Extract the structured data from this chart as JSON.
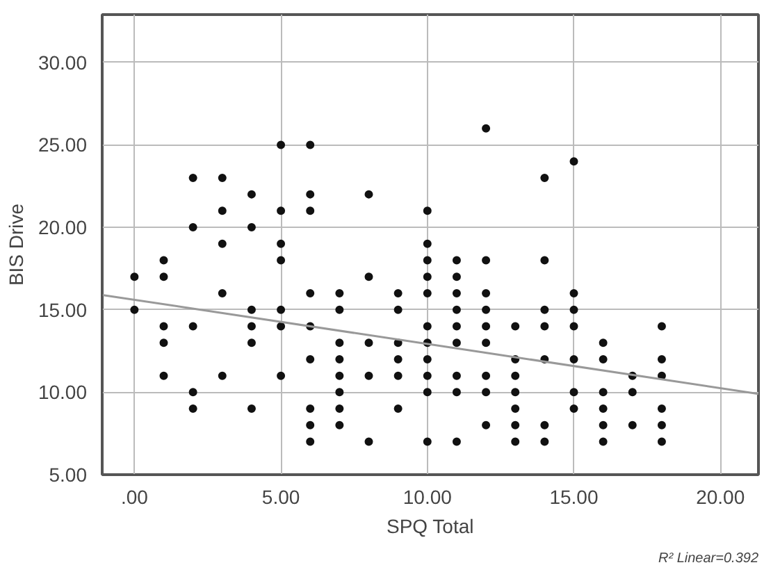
{
  "chart_data": {
    "type": "scatter",
    "xlabel": "SPQ Total",
    "ylabel": "BIS Drive",
    "annotations": [
      "R² Linear=0.392"
    ],
    "xlim": [
      -1.1,
      21.3
    ],
    "ylim": [
      5,
      32.9
    ],
    "xticks": [
      {
        "value": 0,
        "label": ".00"
      },
      {
        "value": 5,
        "label": "5.00"
      },
      {
        "value": 10,
        "label": "10.00"
      },
      {
        "value": 15,
        "label": "15.00"
      },
      {
        "value": 20,
        "label": "20.00"
      }
    ],
    "yticks": [
      {
        "value": 5,
        "label": "5.00"
      },
      {
        "value": 10,
        "label": "10.00"
      },
      {
        "value": 15,
        "label": "15.00"
      },
      {
        "value": 20,
        "label": "20.00"
      },
      {
        "value": 25,
        "label": "25.00"
      },
      {
        "value": 30,
        "label": "30.00"
      }
    ],
    "grid": true,
    "series": [
      {
        "color": "#111111",
        "marker": "circle",
        "x": [
          0,
          0,
          1,
          1,
          1,
          1,
          1,
          2,
          2,
          2,
          2,
          2,
          3,
          3,
          3,
          3,
          3,
          4,
          4,
          4,
          4,
          4,
          4,
          5,
          5,
          5,
          5,
          5,
          5,
          5,
          6,
          6,
          6,
          6,
          6,
          6,
          6,
          6,
          6,
          7,
          7,
          7,
          7,
          7,
          7,
          7,
          7,
          8,
          8,
          8,
          8,
          8,
          9,
          9,
          9,
          9,
          9,
          9,
          10,
          10,
          10,
          10,
          10,
          10,
          10,
          10,
          10,
          10,
          10,
          11,
          11,
          11,
          11,
          11,
          11,
          11,
          11,
          11,
          12,
          12,
          12,
          12,
          12,
          12,
          12,
          12,
          12,
          13,
          13,
          13,
          13,
          13,
          13,
          13,
          14,
          14,
          14,
          14,
          14,
          14,
          14,
          15,
          15,
          15,
          15,
          15,
          15,
          15,
          16,
          16,
          16,
          16,
          16,
          16,
          17,
          17,
          17,
          18,
          18,
          18,
          18,
          18,
          18
        ],
        "values": [
          17,
          15,
          18,
          17,
          14,
          13,
          11,
          23,
          20,
          14,
          10,
          9,
          23,
          21,
          19,
          16,
          11,
          22,
          20,
          15,
          14,
          13,
          9,
          25,
          21,
          19,
          18,
          15,
          14,
          11,
          25,
          22,
          21,
          16,
          14,
          12,
          9,
          8,
          7,
          16,
          15,
          13,
          12,
          11,
          10,
          9,
          8,
          22,
          17,
          13,
          11,
          7,
          16,
          15,
          13,
          12,
          11,
          9,
          21,
          19,
          18,
          17,
          16,
          14,
          13,
          12,
          11,
          10,
          7,
          18,
          17,
          16,
          15,
          14,
          13,
          11,
          10,
          7,
          26,
          18,
          16,
          15,
          14,
          13,
          11,
          10,
          8,
          14,
          12,
          11,
          10,
          9,
          8,
          7,
          23,
          18,
          15,
          14,
          12,
          8,
          7,
          24,
          16,
          15,
          14,
          12,
          10,
          9,
          13,
          12,
          10,
          9,
          8,
          7,
          11,
          10,
          8,
          14,
          12,
          11,
          9,
          8,
          7
        ]
      },
      {
        "type": "line",
        "marker": "none",
        "color": "#999999",
        "x": [
          -1.1,
          21.3
        ],
        "values": [
          15.9,
          9.9
        ]
      }
    ]
  }
}
